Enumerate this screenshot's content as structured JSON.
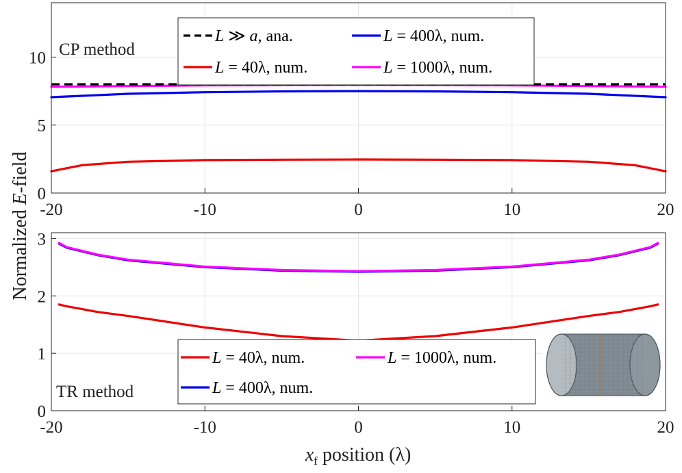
{
  "chart_data": [
    {
      "type": "line",
      "title": "",
      "annotation": "CP method",
      "xlim": [
        -20,
        20
      ],
      "ylim": [
        0,
        14
      ],
      "xticks": [
        -20,
        -10,
        0,
        10,
        20
      ],
      "yticks": [
        0,
        5,
        10
      ],
      "grid": true,
      "legend_position": "top-center",
      "series": [
        {
          "name": "L ≫ a, ana.",
          "legend": {
            "var": "L",
            "op": " ≫ ",
            "val": "a",
            "suffix": ", ana."
          },
          "color": "#000000",
          "dash": true,
          "x": [
            -20,
            20
          ],
          "y": [
            8.0,
            8.0
          ]
        },
        {
          "name": "L = 400λ, num.",
          "legend": {
            "var": "L",
            "op": " = ",
            "val": "400λ",
            "suffix": ", num."
          },
          "color": "#0000ee",
          "dash": false,
          "x": [
            -20,
            -15,
            -10,
            -5,
            0,
            5,
            10,
            15,
            20
          ],
          "y": [
            7.05,
            7.3,
            7.42,
            7.48,
            7.5,
            7.48,
            7.42,
            7.3,
            7.05
          ]
        },
        {
          "name": "L = 40λ, num.",
          "legend": {
            "var": "L",
            "op": " = ",
            "val": "40λ",
            "suffix": ", num."
          },
          "color": "#ee0000",
          "dash": false,
          "x": [
            -20,
            -18,
            -15,
            -10,
            -5,
            0,
            5,
            10,
            15,
            18,
            20
          ],
          "y": [
            1.6,
            2.05,
            2.3,
            2.42,
            2.45,
            2.47,
            2.45,
            2.42,
            2.3,
            2.05,
            1.6
          ]
        },
        {
          "name": "L = 1000λ, num.",
          "legend": {
            "var": "L",
            "op": " = ",
            "val": "1000λ",
            "suffix": ", num."
          },
          "color": "#ff00ff",
          "dash": false,
          "x": [
            -20,
            -10,
            0,
            10,
            20
          ],
          "y": [
            7.82,
            7.92,
            7.95,
            7.92,
            7.82
          ]
        }
      ]
    },
    {
      "type": "line",
      "title": "",
      "annotation": "TR method",
      "xlim": [
        -20,
        20
      ],
      "ylim": [
        0,
        3.1
      ],
      "xticks": [
        -20,
        -10,
        0,
        10,
        20
      ],
      "yticks": [
        0,
        1,
        2,
        3
      ],
      "grid": true,
      "legend_position": "bottom-center",
      "xlabel": "x_f position (λ)",
      "series": [
        {
          "name": "L = 40λ, num.",
          "legend": {
            "var": "L",
            "op": " = ",
            "val": "40λ",
            "suffix": ", num."
          },
          "color": "#ee0000",
          "dash": false,
          "x": [
            -19.5,
            -19,
            -17,
            -15,
            -10,
            -5,
            0,
            5,
            10,
            15,
            17,
            19,
            19.5
          ],
          "y": [
            1.85,
            1.82,
            1.72,
            1.65,
            1.45,
            1.3,
            1.22,
            1.3,
            1.45,
            1.65,
            1.72,
            1.82,
            1.85
          ]
        },
        {
          "name": "L = 1000λ, num.",
          "legend": {
            "var": "L",
            "op": " = ",
            "val": "1000λ",
            "suffix": ", num."
          },
          "color": "#ff00ff",
          "dash": false,
          "x": [
            -19.5,
            -19,
            -17,
            -15,
            -10,
            -5,
            0,
            5,
            10,
            15,
            17,
            19,
            19.5
          ],
          "y": [
            2.92,
            2.85,
            2.72,
            2.63,
            2.51,
            2.45,
            2.43,
            2.45,
            2.51,
            2.63,
            2.72,
            2.85,
            2.92
          ]
        },
        {
          "name": "L = 400λ, num.",
          "legend": {
            "var": "L",
            "op": " = ",
            "val": "400λ",
            "suffix": ", num."
          },
          "color": "#0000ee",
          "dash": false,
          "x": [
            -19.5,
            -19,
            -17,
            -15,
            -10,
            -5,
            0,
            5,
            10,
            15,
            17,
            19,
            19.5
          ],
          "y": [
            2.91,
            2.84,
            2.71,
            2.62,
            2.5,
            2.44,
            2.42,
            2.44,
            2.5,
            2.62,
            2.71,
            2.84,
            2.91
          ]
        }
      ]
    }
  ],
  "shared": {
    "ylabel": "Normalized E-field",
    "ylabel_parts": [
      "Normalized ",
      "E",
      "-field"
    ],
    "xlabel_parts": [
      "x",
      "f",
      " position (λ)"
    ]
  }
}
